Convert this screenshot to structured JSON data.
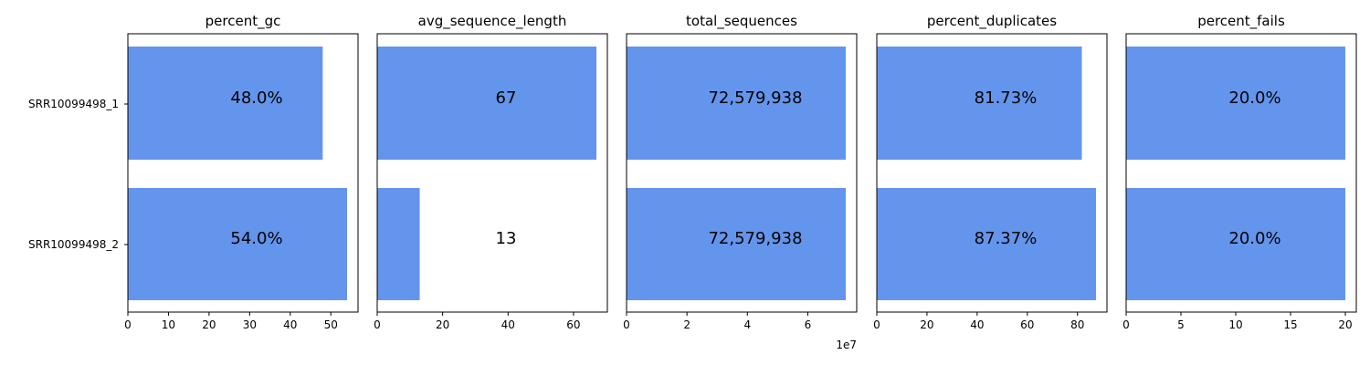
{
  "colors": {
    "bar": "#6495ED",
    "text": "#000000",
    "background": "#FFFFFF"
  },
  "chart_data": {
    "type": "bar",
    "orientation": "horizontal",
    "categories": [
      "SRR10099498_1",
      "SRR10099498_2"
    ],
    "panels": [
      {
        "title": "percent_gc",
        "values": [
          48.0,
          54.0
        ],
        "value_labels": [
          "48.0%",
          "54.0%"
        ],
        "xlim": [
          0,
          56.7
        ],
        "xticks": [
          0,
          10,
          20,
          30,
          40,
          50
        ],
        "xtick_labels": [
          "0",
          "10",
          "20",
          "30",
          "40",
          "50"
        ],
        "offset_text": ""
      },
      {
        "title": "avg_sequence_length",
        "values": [
          67,
          13
        ],
        "value_labels": [
          "67",
          "13"
        ],
        "xlim": [
          0,
          70.35
        ],
        "xticks": [
          0,
          20,
          40,
          60
        ],
        "xtick_labels": [
          "0",
          "20",
          "40",
          "60"
        ],
        "offset_text": ""
      },
      {
        "title": "total_sequences",
        "values": [
          72579938,
          72579938
        ],
        "value_labels": [
          "72,579,938",
          "72,579,938"
        ],
        "xlim": [
          0,
          76208935
        ],
        "xticks": [
          0,
          20000000,
          40000000,
          60000000
        ],
        "xtick_labels": [
          "0",
          "2",
          "4",
          "6"
        ],
        "offset_text": "1e7"
      },
      {
        "title": "percent_duplicates",
        "values": [
          81.73,
          87.37
        ],
        "value_labels": [
          "81.73%",
          "87.37%"
        ],
        "xlim": [
          0,
          91.74
        ],
        "xticks": [
          0,
          20,
          40,
          60,
          80
        ],
        "xtick_labels": [
          "0",
          "20",
          "40",
          "60",
          "80"
        ],
        "offset_text": ""
      },
      {
        "title": "percent_fails",
        "values": [
          20.0,
          20.0
        ],
        "value_labels": [
          "20.0%",
          "20.0%"
        ],
        "xlim": [
          0,
          21
        ],
        "xticks": [
          0,
          5,
          10,
          15,
          20
        ],
        "xtick_labels": [
          "0",
          "5",
          "10",
          "15",
          "20"
        ],
        "offset_text": ""
      }
    ]
  }
}
